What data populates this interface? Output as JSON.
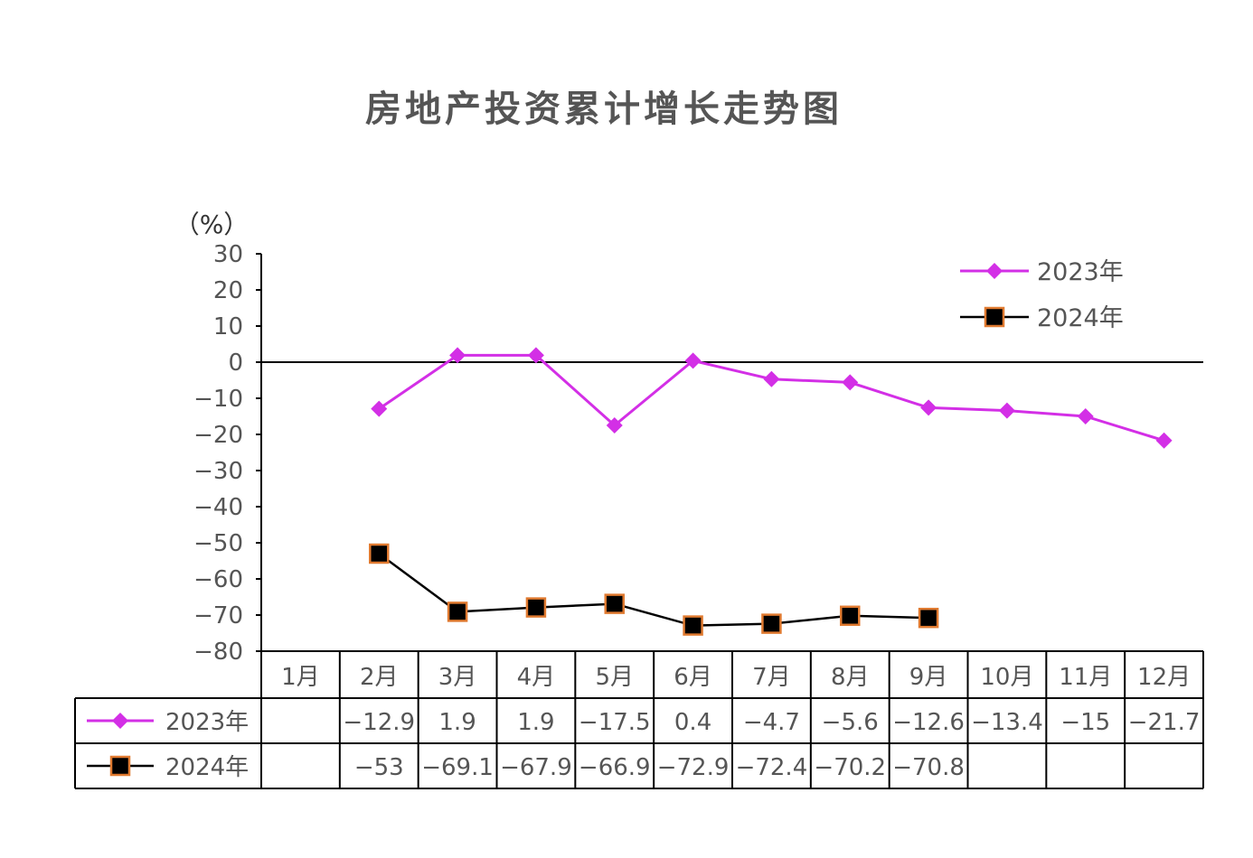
{
  "chart_data": {
    "type": "line",
    "title": "房地产投资累计增长走势图",
    "ylabel": "（%）",
    "ylim": [
      -80,
      30
    ],
    "yticks": [
      30,
      20,
      10,
      0,
      -10,
      -20,
      -30,
      -40,
      -50,
      -60,
      -70,
      -80
    ],
    "categories": [
      "1月",
      "2月",
      "3月",
      "4月",
      "5月",
      "6月",
      "7月",
      "8月",
      "9月",
      "10月",
      "11月",
      "12月"
    ],
    "series": [
      {
        "name": "2023年",
        "color": "#d32fe6",
        "marker": "diamond",
        "values": [
          null,
          -12.9,
          1.9,
          1.9,
          -17.5,
          0.4,
          -4.7,
          -5.6,
          -12.6,
          -13.4,
          -15,
          -21.7
        ],
        "labels": [
          "",
          "-12.9",
          "1.9",
          "1.9",
          "-17.5",
          "0.4",
          "-4.7",
          "-5.6",
          "-12.6",
          "-13.4",
          "-15",
          "-21.7"
        ]
      },
      {
        "name": "2024年",
        "color": "#000000",
        "marker": "square",
        "marker_border": "#e07a30",
        "values": [
          null,
          -53,
          -69.1,
          -67.9,
          -66.9,
          -72.9,
          -72.4,
          -70.2,
          -70.8,
          null,
          null,
          null
        ],
        "labels": [
          "",
          "-53",
          "-69.1",
          "-67.9",
          "-66.9",
          "-72.9",
          "-72.4",
          "-70.2",
          "-70.8",
          "",
          "",
          ""
        ]
      }
    ],
    "legend_position": "top-right",
    "grid": false,
    "data_table": true
  }
}
